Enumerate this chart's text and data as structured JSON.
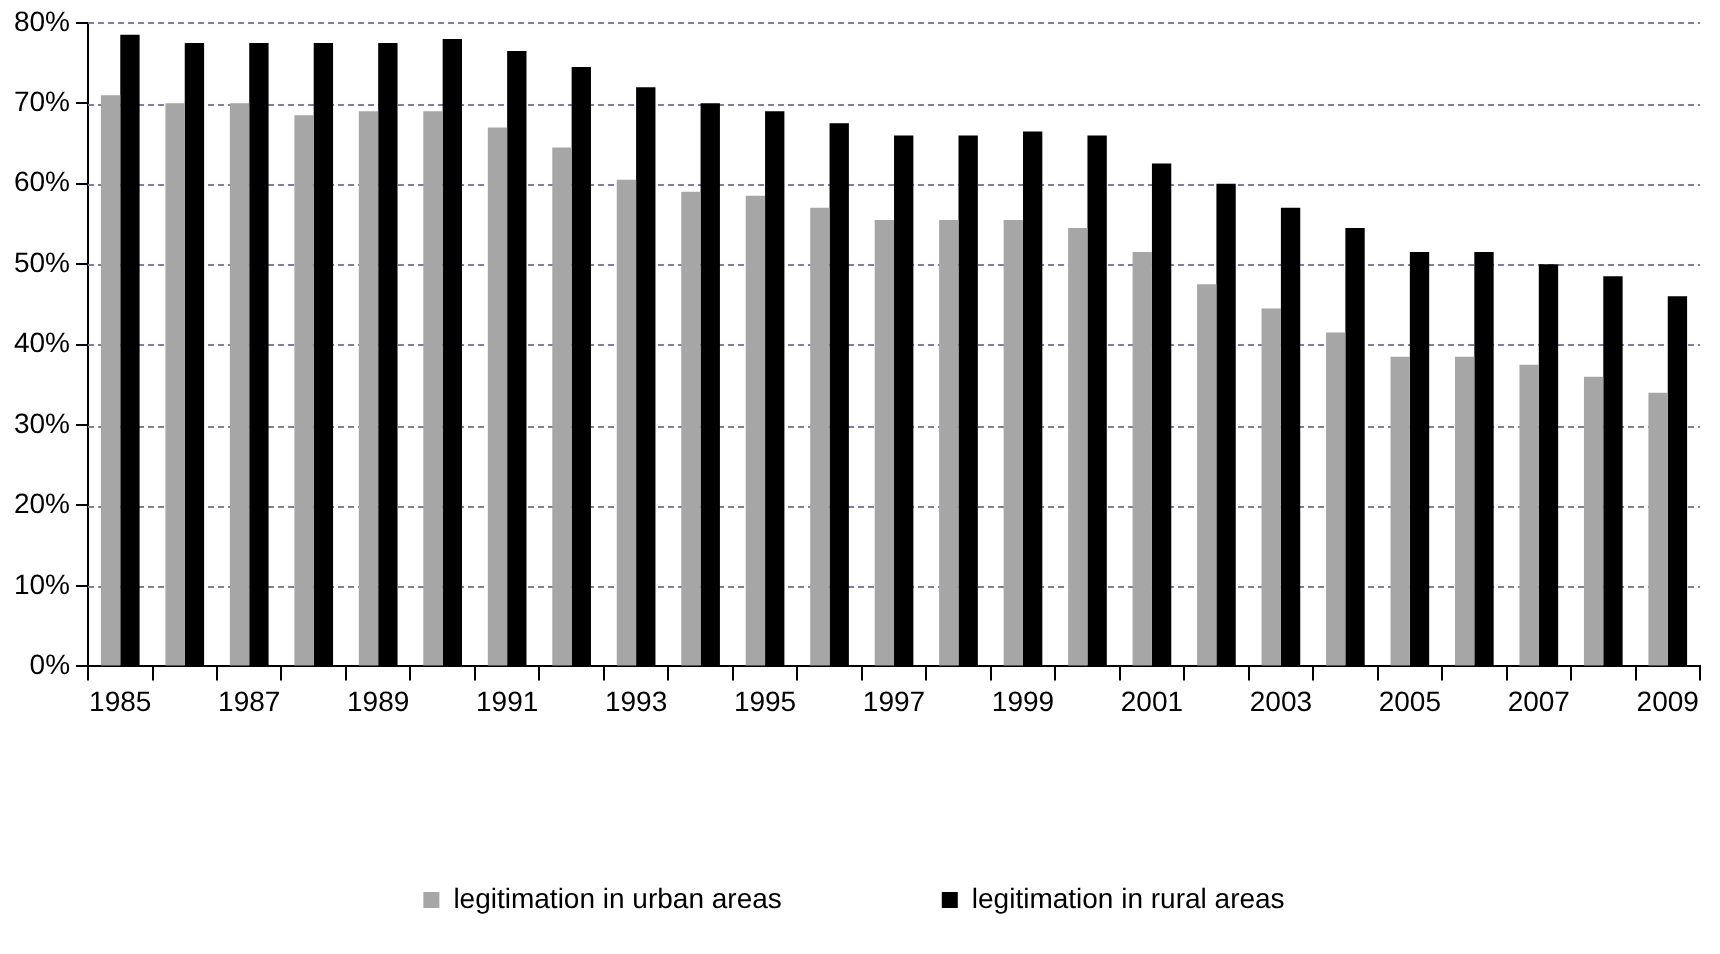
{
  "chart_data": {
    "type": "bar",
    "categories": [
      "1985",
      null,
      "1987",
      null,
      "1989",
      null,
      "1991",
      null,
      "1993",
      null,
      "1995",
      null,
      "1997",
      null,
      "1999",
      null,
      "2001",
      null,
      "2003",
      null,
      "2005",
      null,
      "2007",
      null,
      "2009"
    ],
    "series": [
      {
        "name": "legitimation in urban areas",
        "color": "#a6a6a6",
        "values": [
          71,
          70,
          70,
          68.5,
          69,
          69,
          67,
          64.5,
          60.5,
          59,
          58.5,
          57,
          55.5,
          55.5,
          55.5,
          54.5,
          51.5,
          47.5,
          44.5,
          41.5,
          38.5,
          38.5,
          37.5,
          36,
          34
        ]
      },
      {
        "name": "legitimation in rural areas",
        "color": "#000000",
        "values": [
          78.5,
          77.5,
          77.5,
          77.5,
          77.5,
          78,
          76.5,
          74.5,
          72,
          70,
          69,
          67.5,
          66,
          66,
          66.5,
          66,
          62.5,
          60,
          57,
          54.5,
          51.5,
          51.5,
          50,
          48.5,
          46
        ]
      }
    ],
    "ylim": [
      0,
      80
    ],
    "yticks": [
      {
        "value": 0,
        "label": "0%"
      },
      {
        "value": 10,
        "label": "10%"
      },
      {
        "value": 20,
        "label": "20%"
      },
      {
        "value": 30,
        "label": "30%"
      },
      {
        "value": 40,
        "label": "40%"
      },
      {
        "value": 50,
        "label": "50%"
      },
      {
        "value": 60,
        "label": "60%"
      },
      {
        "value": 70,
        "label": "70%"
      },
      {
        "value": 80,
        "label": "80%"
      }
    ],
    "grid": "y",
    "legend": "bottom"
  }
}
